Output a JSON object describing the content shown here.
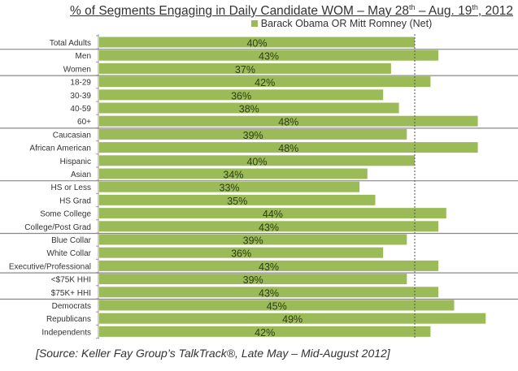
{
  "chart_data": {
    "type": "bar",
    "orientation": "horizontal",
    "title_main": "% of Segments  Engaging in Daily Candidate WOM – May 28",
    "title_sup1": "th",
    "title_mid": " – Aug. 19",
    "title_sup2": "th",
    "title_end": ", 2012",
    "legend": [
      "Barack Obama OR Mitt Romney (Net)"
    ],
    "categories": [
      "Total Adults",
      "Men",
      "Women",
      "18-29",
      "30-39",
      "40-59",
      "60+",
      "Caucasian",
      "African American",
      "Hispanic",
      "Asian",
      "HS or Less",
      "HS Grad",
      "Some College",
      "College/Post Grad",
      "Blue Collar",
      "White Collar",
      "Executive/Professional",
      "<$75K HHI",
      "$75K+ HHI",
      "Democrats",
      "Republicans",
      "Independents"
    ],
    "values": [
      40,
      43,
      37,
      42,
      36,
      38,
      48,
      39,
      48,
      40,
      34,
      33,
      35,
      44,
      43,
      39,
      36,
      43,
      39,
      43,
      45,
      49,
      42
    ],
    "data_labels": [
      "40%",
      "43%",
      "37%",
      "42%",
      "36%",
      "38%",
      "48%",
      "39%",
      "48%",
      "40%",
      "34%",
      "33%",
      "35%",
      "44%",
      "43%",
      "39%",
      "36%",
      "43%",
      "39%",
      "43%",
      "45%",
      "49%",
      "42%"
    ],
    "group_breaks_after": [
      "Total Adults",
      "Women",
      "60+",
      "Asian",
      "College/Post Grad",
      "Executive/Professional",
      "$75K+ HHI"
    ],
    "reference_line": 40,
    "xlim": [
      0,
      50
    ],
    "color": "#9bbb59",
    "label_color": "#2e3d12"
  },
  "source": "[Source: Keller Fay Group’s TalkTrack®, Late May – Mid-August 2012]"
}
